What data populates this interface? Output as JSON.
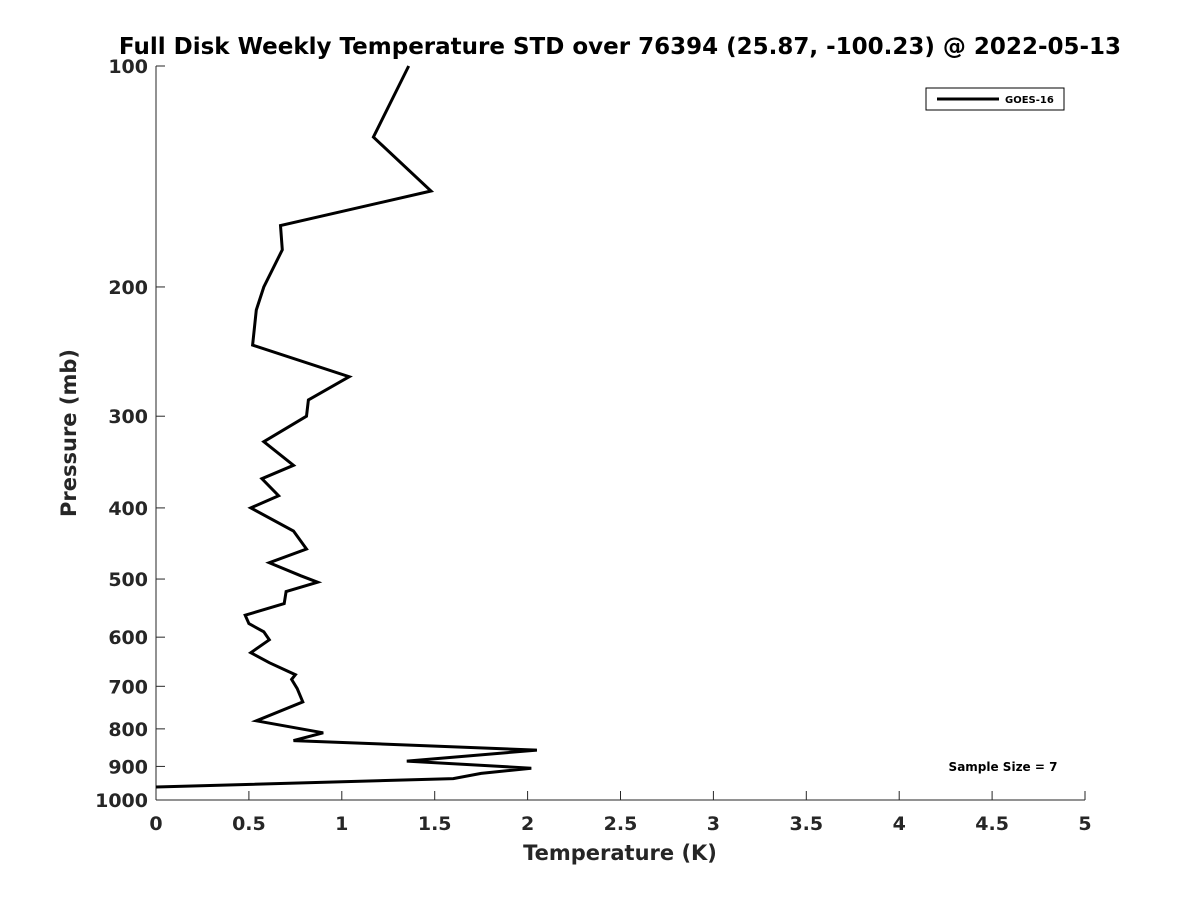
{
  "chart_data": {
    "type": "line",
    "title": "Full Disk Weekly Temperature STD over 76394 (25.87, -100.23) @ 2022-05-13",
    "xlabel": "Temperature (K)",
    "ylabel": "Pressure (mb)",
    "xlim": [
      0,
      5
    ],
    "ylim": [
      100,
      1000
    ],
    "y_scale": "log",
    "y_reversed": true,
    "x_ticks": [
      "0",
      "0.5",
      "1",
      "1.5",
      "2",
      "2.5",
      "3",
      "3.5",
      "4",
      "4.5",
      "5"
    ],
    "y_ticks": [
      "100",
      "200",
      "300",
      "400",
      "500",
      "600",
      "700",
      "800",
      "900",
      "1000"
    ],
    "grid": false,
    "legend_position": "top-right",
    "series": [
      {
        "name": "GOES-16",
        "color": "#000000",
        "x": [
          1.36,
          1.17,
          1.48,
          0.67,
          0.68,
          0.58,
          0.54,
          0.52,
          1.04,
          0.82,
          0.81,
          0.58,
          0.74,
          0.57,
          0.66,
          0.51,
          0.74,
          0.81,
          0.61,
          0.78,
          0.87,
          0.7,
          0.69,
          0.48,
          0.5,
          0.58,
          0.61,
          0.51,
          0.61,
          0.75,
          0.73,
          0.76,
          0.79,
          0.54,
          0.9,
          0.74,
          2.05,
          1.35,
          2.02,
          1.75,
          1.6,
          0.0
        ],
        "y": [
          100,
          125,
          148,
          165,
          178,
          200,
          215,
          240,
          265,
          285,
          300,
          325,
          350,
          365,
          385,
          400,
          430,
          455,
          475,
          495,
          505,
          520,
          540,
          560,
          575,
          590,
          605,
          630,
          650,
          675,
          685,
          705,
          735,
          780,
          810,
          830,
          855,
          885,
          905,
          920,
          935,
          960
        ]
      }
    ],
    "annotation": "Sample Size = 7"
  }
}
